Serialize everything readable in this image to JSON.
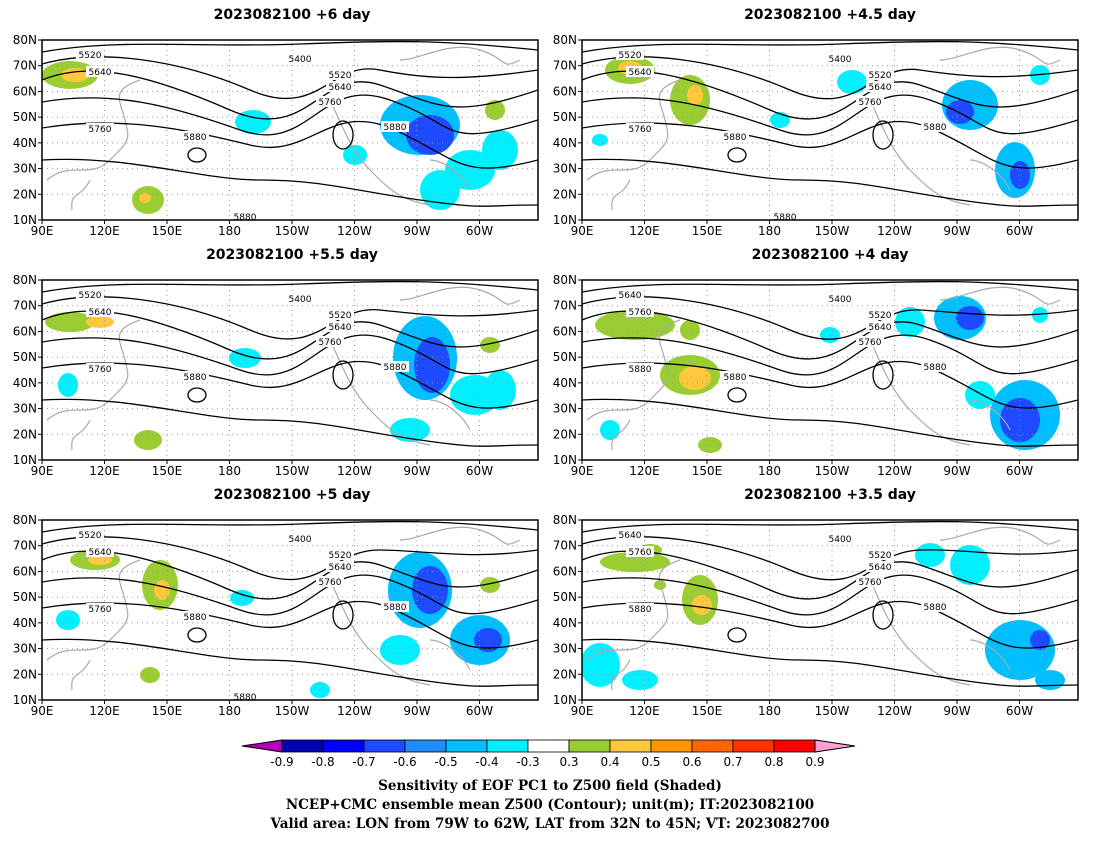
{
  "panels": [
    {
      "title": "2023082100 +6 day",
      "contour_labels": [
        "5400",
        "5520",
        "5640",
        "5760",
        "5880",
        "5520",
        "5640",
        "5760",
        "5880",
        "5880"
      ]
    },
    {
      "title": "2023082100 +4.5 day",
      "contour_labels": [
        "5400",
        "5520",
        "5640",
        "5760",
        "5880",
        "5520",
        "5640",
        "5760",
        "5880",
        "5880"
      ]
    },
    {
      "title": "2023082100 +5.5 day",
      "contour_labels": [
        "5400",
        "5520",
        "5640",
        "5760",
        "5880",
        "5520",
        "5640",
        "5760",
        "5880"
      ]
    },
    {
      "title": "2023082100 +4 day",
      "contour_labels": [
        "5400",
        "5520",
        "5640",
        "5760",
        "5880",
        "5640",
        "5760",
        "5880",
        "5880"
      ]
    },
    {
      "title": "2023082100 +5 day",
      "contour_labels": [
        "5400",
        "5520",
        "5640",
        "5760",
        "5880",
        "5520",
        "5640",
        "5760",
        "5880",
        "5880"
      ]
    },
    {
      "title": "2023082100 +3.5 day",
      "contour_labels": [
        "5400",
        "5520",
        "5640",
        "5760",
        "5880",
        "5640",
        "5760",
        "5880"
      ]
    }
  ],
  "axes": {
    "lat_labels": [
      "80N",
      "70N",
      "60N",
      "50N",
      "40N",
      "30N",
      "20N",
      "10N"
    ],
    "lon_labels": [
      "90E",
      "120E",
      "150E",
      "180",
      "150W",
      "120W",
      "90W",
      "60W"
    ]
  },
  "colorbar": {
    "ticks": [
      "-0.9",
      "-0.8",
      "-0.7",
      "-0.6",
      "-0.5",
      "-0.4",
      "-0.3",
      "0.3",
      "0.4",
      "0.5",
      "0.6",
      "0.7",
      "0.8",
      "0.9"
    ],
    "colors": [
      "#b400b4",
      "#0000b4",
      "#0000ff",
      "#1e4bff",
      "#1e8cff",
      "#00bfff",
      "#00f0ff",
      "#ffffff",
      "#9acd32",
      "#ffc83c",
      "#ff9600",
      "#ff6400",
      "#ff3200",
      "#ff0000",
      "#ffa0d2"
    ]
  },
  "footer": {
    "line1": "Sensitivity of EOF PC1 to Z500 field (Shaded)",
    "line2": "NCEP+CMC ensemble mean Z500 (Contour); unit(m); IT:2023082100",
    "line3": "Valid area: LON from 79W to 62W, LAT from 32N to 45N; VT: 2023082700"
  },
  "colors": {
    "positive_green": "#9acd32",
    "positive_yellow": "#ffc83c",
    "negative_cyan": "#00f0ff",
    "negative_sky": "#00bfff",
    "negative_blue": "#1e4bff",
    "coast": "#a9a9a9",
    "contour": "#000000"
  }
}
